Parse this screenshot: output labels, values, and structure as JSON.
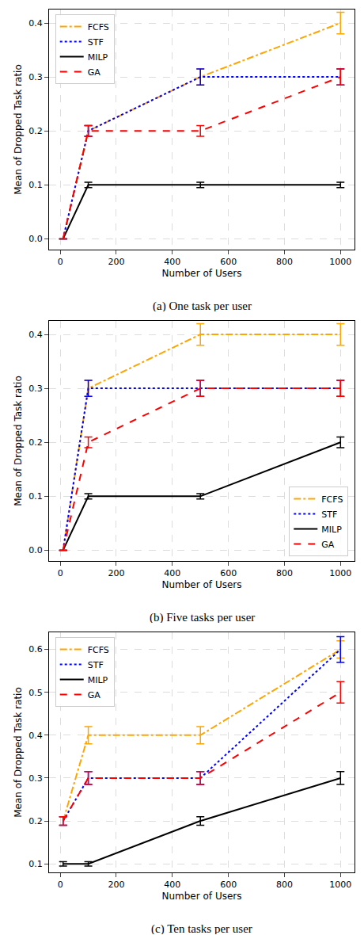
{
  "chart_data": [
    {
      "type": "line",
      "title": "(a) One task per user",
      "x_label": "Number of Users",
      "y_label": "Mean of Dropped Task ratio",
      "x": [
        10,
        100,
        500,
        1000
      ],
      "series": [
        {
          "name": "FCFS",
          "color": "#ffa500",
          "line_style": "dashdot",
          "values": [
            0,
            0.2,
            0.3,
            0.4
          ],
          "error": [
            0,
            0.01,
            0.015,
            0.02
          ]
        },
        {
          "name": "STF",
          "color": "#0000ff",
          "line_style": "dotted",
          "values": [
            0,
            0.2,
            0.3,
            0.3
          ],
          "error": [
            0,
            0.01,
            0.015,
            0.015
          ]
        },
        {
          "name": "MILP",
          "color": "#000000",
          "line_style": "solid",
          "values": [
            0,
            0.1,
            0.1,
            0.1
          ],
          "error": [
            0,
            0.005,
            0.005,
            0.005
          ]
        },
        {
          "name": "GA",
          "color": "#ff0000",
          "line_style": "dashed",
          "values": [
            0,
            0.2,
            0.2,
            0.3
          ],
          "error": [
            0,
            0.01,
            0.01,
            0.015
          ]
        }
      ],
      "xlim": [
        -40,
        1050
      ],
      "xticks": [
        0,
        200,
        400,
        600,
        800,
        1000
      ],
      "ylim": [
        -0.02,
        0.425
      ],
      "yticks": [
        {
          "value": 0,
          "label": "0.0"
        },
        0.1,
        0.2,
        0.3,
        0.4
      ],
      "grid": true,
      "legend": "upper left"
    },
    {
      "type": "line",
      "title": "(b) Five tasks per user",
      "x_label": "Number of Users",
      "y_label": "Mean of Dropped Task ratio",
      "x": [
        10,
        100,
        500,
        1000
      ],
      "series": [
        {
          "name": "FCFS",
          "color": "#ffa500",
          "line_style": "dashdot",
          "values": [
            0,
            0.3,
            0.4,
            0.4
          ],
          "error": [
            0,
            0.015,
            0.02,
            0.02
          ]
        },
        {
          "name": "STF",
          "color": "#0000ff",
          "line_style": "dotted",
          "values": [
            0,
            0.3,
            0.3,
            0.3
          ],
          "error": [
            0,
            0.015,
            0.015,
            0.015
          ]
        },
        {
          "name": "MILP",
          "color": "#000000",
          "line_style": "solid",
          "values": [
            0,
            0.1,
            0.1,
            0.2
          ],
          "error": [
            0,
            0.005,
            0.005,
            0.01
          ]
        },
        {
          "name": "GA",
          "color": "#ff0000",
          "line_style": "dashed",
          "values": [
            0,
            0.2,
            0.3,
            0.3
          ],
          "error": [
            0,
            0.01,
            0.015,
            0.015
          ]
        }
      ],
      "xlim": [
        -40,
        1050
      ],
      "xticks": [
        0,
        200,
        400,
        600,
        800,
        1000
      ],
      "ylim": [
        -0.02,
        0.425
      ],
      "yticks": [
        {
          "value": 0,
          "label": "0.0"
        },
        0.1,
        0.2,
        0.3,
        0.4
      ],
      "grid": true,
      "legend": "lower right"
    },
    {
      "type": "line",
      "title": "(c) Ten tasks per user",
      "x_label": "Number of Users",
      "y_label": "Mean of Dropped Task ratio",
      "x": [
        10,
        100,
        500,
        1000
      ],
      "series": [
        {
          "name": "FCFS",
          "color": "#ffa500",
          "line_style": "dashdot",
          "values": [
            0.2,
            0.4,
            0.4,
            0.6
          ],
          "error": [
            0.01,
            0.02,
            0.02,
            0.02
          ]
        },
        {
          "name": "STF",
          "color": "#0000ff",
          "line_style": "dotted",
          "values": [
            0.2,
            0.3,
            0.3,
            0.6
          ],
          "error": [
            0.01,
            0.015,
            0.015,
            0.03
          ]
        },
        {
          "name": "MILP",
          "color": "#000000",
          "line_style": "solid",
          "values": [
            0.1,
            0.1,
            0.2,
            0.3
          ],
          "error": [
            0.005,
            0.005,
            0.01,
            0.015
          ]
        },
        {
          "name": "GA",
          "color": "#ff0000",
          "line_style": "dashed",
          "values": [
            0.2,
            0.3,
            0.3,
            0.5
          ],
          "error": [
            0.01,
            0.015,
            0.015,
            0.025
          ]
        }
      ],
      "xlim": [
        -40,
        1050
      ],
      "xticks": [
        0,
        200,
        400,
        600,
        800,
        1000
      ],
      "ylim": [
        0.08,
        0.64
      ],
      "yticks": [
        0.1,
        0.2,
        0.3,
        0.4,
        0.5,
        0.6
      ],
      "grid": true,
      "legend": "upper left"
    }
  ]
}
